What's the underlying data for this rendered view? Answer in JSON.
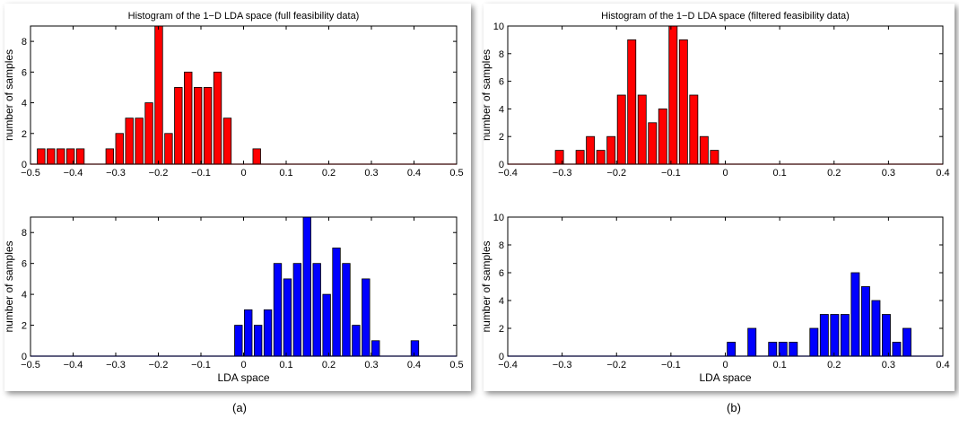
{
  "chart_data": [
    {
      "id": "a-top",
      "type": "bar",
      "title": "Histogram of the 1−D LDA space (full feasibility data)",
      "xlabel": "",
      "ylabel": "number of samples",
      "xlim": [
        -0.5,
        0.5
      ],
      "ylim": [
        0,
        9
      ],
      "xticks": [
        -0.5,
        -0.4,
        -0.3,
        -0.2,
        -0.1,
        0,
        0.1,
        0.2,
        0.3,
        0.4,
        0.5
      ],
      "xtick_labels": [
        "−0.5",
        "−0.4",
        "−0.3",
        "−0.2",
        "−0.1",
        "0",
        "0.1",
        "0.2",
        "0.3",
        "0.4",
        "0.5"
      ],
      "yticks": [
        0,
        2,
        4,
        6,
        8
      ],
      "bar_width": 0.018,
      "color": "#ff0000",
      "x": [
        -0.475,
        -0.452,
        -0.429,
        -0.406,
        -0.383,
        -0.314,
        -0.291,
        -0.268,
        -0.245,
        -0.222,
        -0.199,
        -0.176,
        -0.153,
        -0.13,
        -0.107,
        -0.084,
        -0.061,
        -0.038,
        -0.015,
        0.031
      ],
      "values": [
        1,
        1,
        1,
        1,
        1,
        1,
        2,
        3,
        3,
        4,
        9,
        2,
        5,
        6,
        5,
        5,
        6,
        3,
        0,
        1
      ]
    },
    {
      "id": "a-bottom",
      "type": "bar",
      "title": "",
      "xlabel": "LDA space",
      "ylabel": "number of samples",
      "xlim": [
        -0.5,
        0.5
      ],
      "ylim": [
        0,
        9
      ],
      "xticks": [
        -0.5,
        -0.4,
        -0.3,
        -0.2,
        -0.1,
        0,
        0.1,
        0.2,
        0.3,
        0.4,
        0.5
      ],
      "xtick_labels": [
        "−0.5",
        "−0.4",
        "−0.3",
        "−0.2",
        "−0.1",
        "0",
        "0.1",
        "0.2",
        "0.3",
        "0.4",
        "0.5"
      ],
      "yticks": [
        0,
        2,
        4,
        6,
        8
      ],
      "bar_width": 0.018,
      "color": "#0000ff",
      "x": [
        -0.012,
        0.011,
        0.034,
        0.057,
        0.08,
        0.103,
        0.126,
        0.149,
        0.172,
        0.195,
        0.218,
        0.241,
        0.264,
        0.287,
        0.31,
        0.402
      ],
      "values": [
        2,
        3,
        2,
        3,
        6,
        5,
        6,
        9,
        6,
        4,
        7,
        6,
        2,
        5,
        1,
        1
      ]
    },
    {
      "id": "b-top",
      "type": "bar",
      "title": "Histogram of the 1−D LDA space (filtered feasibility data)",
      "xlabel": "",
      "ylabel": "number of samples",
      "xlim": [
        -0.4,
        0.4
      ],
      "ylim": [
        0,
        10
      ],
      "xticks": [
        -0.4,
        -0.3,
        -0.2,
        -0.1,
        0,
        0.1,
        0.2,
        0.3,
        0.4
      ],
      "xtick_labels": [
        "−0.4",
        "−0.3",
        "−0.2",
        "−0.1",
        "0",
        "0.1",
        "0.2",
        "0.3",
        "0.4"
      ],
      "yticks": [
        0,
        2,
        4,
        6,
        8,
        10
      ],
      "bar_width": 0.015,
      "color": "#ff0000",
      "x": [
        -0.305,
        -0.267,
        -0.248,
        -0.229,
        -0.21,
        -0.191,
        -0.172,
        -0.153,
        -0.134,
        -0.115,
        -0.096,
        -0.077,
        -0.058,
        -0.039,
        -0.02
      ],
      "values": [
        1,
        1,
        2,
        1,
        2,
        5,
        9,
        5,
        3,
        4,
        10,
        9,
        5,
        2,
        1
      ]
    },
    {
      "id": "b-bottom",
      "type": "bar",
      "title": "",
      "xlabel": "LDA space",
      "ylabel": "number of samples",
      "xlim": [
        -0.4,
        0.4
      ],
      "ylim": [
        0,
        10
      ],
      "xticks": [
        -0.4,
        -0.3,
        -0.2,
        -0.1,
        0,
        0.1,
        0.2,
        0.3,
        0.4
      ],
      "xtick_labels": [
        "−0.4",
        "−0.3",
        "−0.2",
        "−0.1",
        "0",
        "0.1",
        "0.2",
        "0.3",
        "0.4"
      ],
      "yticks": [
        0,
        2,
        4,
        6,
        8,
        10
      ],
      "bar_width": 0.015,
      "color": "#0000ff",
      "x": [
        0.011,
        0.049,
        0.087,
        0.106,
        0.125,
        0.163,
        0.182,
        0.201,
        0.22,
        0.239,
        0.258,
        0.277,
        0.296,
        0.315,
        0.334
      ],
      "values": [
        1,
        2,
        1,
        1,
        1,
        2,
        3,
        3,
        3,
        6,
        5,
        4,
        3,
        1,
        2
      ]
    }
  ],
  "labels": {
    "a": "(a)",
    "b": "(b)"
  }
}
